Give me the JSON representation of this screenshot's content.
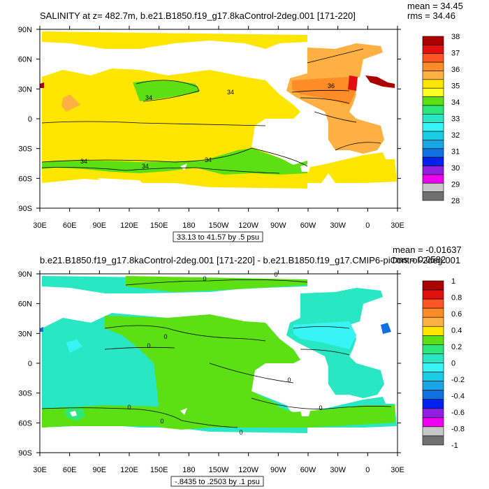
{
  "chart_data": [
    {
      "type": "heatmap",
      "title": "SALINITY at z= 482.7m, b.e21.B1850.f19_g17.8kaControl-2deg.001 [171-220]",
      "stats": {
        "mean": "mean = 34.45",
        "rms": "rms = 34.46"
      },
      "x_ticks": [
        "30E",
        "60E",
        "90E",
        "120E",
        "150E",
        "180",
        "150W",
        "120W",
        "90W",
        "60W",
        "30W",
        "0",
        "30E"
      ],
      "y_ticks": [
        "90N",
        "60N",
        "30N",
        "0",
        "30S",
        "60S",
        "90S"
      ],
      "colorbar": {
        "labels": [
          "38",
          "37",
          "36",
          "35",
          "34",
          "33",
          "32",
          "31",
          "30",
          "29",
          "28"
        ],
        "colors": [
          "#aa0000",
          "#e01010",
          "#ff5522",
          "#ff8c26",
          "#ffb043",
          "#ffe600",
          "#ffff20",
          "#5de013",
          "#2ce87a",
          "#28e7c2",
          "#38f5f5",
          "#18cde5",
          "#1aa5e5",
          "#1070e0",
          "#0022ee",
          "#9020e0",
          "#ee00ee",
          "#c8c8c8",
          "#707070"
        ]
      },
      "contour_labels": [
        "34",
        "34",
        "36",
        "34",
        "34",
        "34"
      ],
      "range_label": "33.13 to 41.57 by .5 psu"
    },
    {
      "type": "heatmap",
      "title": "b.e21.B1850.f19_g17.8kaControl-2deg.001 [171-220] - b.e21.B1850.f19_g17.CMIP6-piControl-2deg.001",
      "stats": {
        "mean": "mean = -0.01637",
        "rms": "rms = 0.0582"
      },
      "x_ticks": [
        "30E",
        "60E",
        "90E",
        "120E",
        "150E",
        "180",
        "150W",
        "120W",
        "90W",
        "60W",
        "30W",
        "0",
        "30E"
      ],
      "y_ticks": [
        "90N",
        "60N",
        "30N",
        "0",
        "30S",
        "60S",
        "90S"
      ],
      "colorbar": {
        "labels": [
          "1",
          "0.8",
          "0.6",
          "0.4",
          "0.2",
          "0",
          "-0.2",
          "-0.4",
          "-0.6",
          "-0.8",
          "-1"
        ],
        "colors": [
          "#aa0000",
          "#e01010",
          "#ff5522",
          "#ff8c26",
          "#ffb043",
          "#ffe600",
          "#5de013",
          "#2ce87a",
          "#28e7c2",
          "#38f5f5",
          "#18cde5",
          "#1aa5e5",
          "#1070e0",
          "#0022ee",
          "#9020e0",
          "#ee00ee",
          "#c8c8c8",
          "#707070"
        ]
      },
      "contour_labels": [
        "0",
        "0",
        "0",
        "0",
        "0",
        "0",
        "0",
        "0",
        "0"
      ],
      "range_label": "-.8435 to .2503 by .1 psu"
    }
  ]
}
